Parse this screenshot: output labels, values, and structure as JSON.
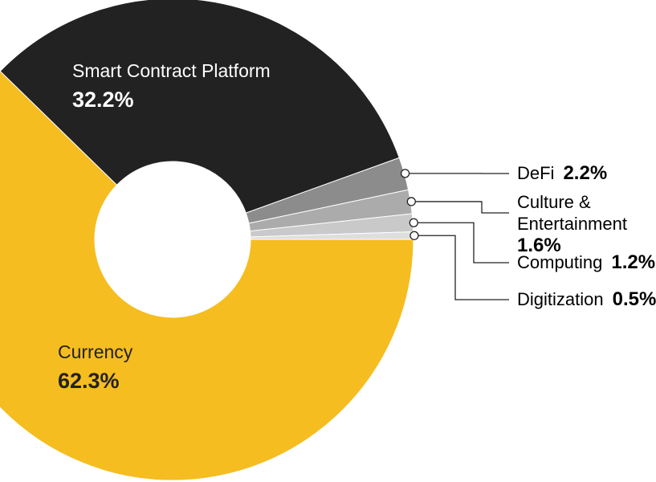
{
  "chart_data": {
    "type": "donut",
    "categories": [
      "Currency",
      "Smart Contract Platform",
      "DeFi",
      "Culture & Entertainment",
      "Computing",
      "Digitization"
    ],
    "values": [
      62.3,
      32.2,
      2.2,
      1.6,
      1.2,
      0.5
    ],
    "value_labels": [
      "62.3%",
      "32.2%",
      "2.2%",
      "1.6%",
      "1.2%",
      "0.5%"
    ],
    "colors": [
      "#f5bd1f",
      "#222222",
      "#8c8c8c",
      "#ababab",
      "#c9c9c9",
      "#dedede"
    ]
  }
}
